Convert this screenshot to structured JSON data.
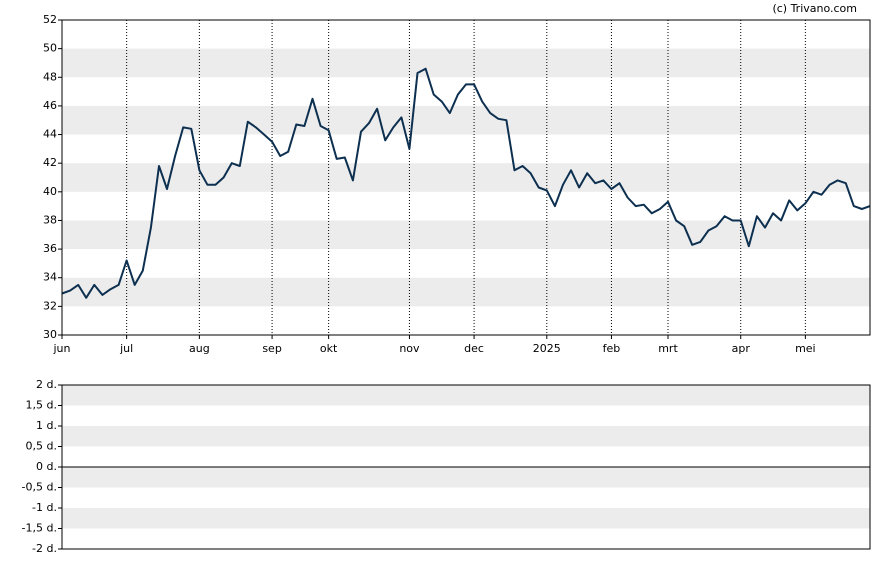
{
  "chart_data": [
    {
      "type": "line",
      "source": "(c) Trivano.com",
      "categories": [
        "jun",
        null,
        null,
        null,
        null,
        null,
        null,
        null,
        "jul",
        null,
        null,
        null,
        null,
        null,
        null,
        null,
        null,
        "aug",
        null,
        null,
        null,
        null,
        null,
        null,
        null,
        null,
        "sep",
        null,
        null,
        null,
        null,
        null,
        null,
        "okt",
        null,
        null,
        null,
        null,
        null,
        null,
        null,
        null,
        null,
        "nov",
        null,
        null,
        null,
        null,
        null,
        null,
        null,
        "dec",
        null,
        null,
        null,
        null,
        null,
        null,
        null,
        null,
        "2025",
        null,
        null,
        null,
        null,
        null,
        null,
        null,
        "feb",
        null,
        null,
        null,
        null,
        null,
        null,
        "mrt",
        null,
        null,
        null,
        null,
        null,
        null,
        null,
        null,
        "apr",
        null,
        null,
        null,
        null,
        null,
        null,
        null,
        "mei",
        null,
        null,
        null,
        null,
        null,
        null,
        null,
        null
      ],
      "series": [
        {
          "color": "#0d3050",
          "values": [
            32.9,
            33.1,
            33.5,
            32.6,
            33.5,
            32.8,
            33.2,
            33.5,
            35.2,
            33.5,
            34.5,
            37.5,
            41.8,
            40.2,
            42.5,
            44.5,
            44.4,
            41.5,
            40.5,
            40.5,
            41.0,
            42.0,
            41.8,
            44.9,
            44.5,
            44.0,
            43.5,
            42.5,
            42.8,
            44.7,
            44.6,
            46.5,
            44.6,
            44.3,
            42.3,
            42.4,
            40.8,
            44.2,
            44.8,
            45.8,
            43.6,
            44.5,
            45.2,
            43.0,
            48.3,
            48.6,
            46.8,
            46.3,
            45.5,
            46.8,
            47.5,
            47.5,
            46.3,
            45.5,
            45.1,
            45.0,
            41.5,
            41.8,
            41.3,
            40.3,
            40.1,
            39.0,
            40.5,
            41.5,
            40.3,
            41.3,
            40.6,
            40.8,
            40.2,
            40.6,
            39.6,
            39.0,
            39.1,
            38.5,
            38.8,
            39.3,
            38.0,
            37.6,
            36.3,
            36.5,
            37.3,
            37.6,
            38.3,
            38.0,
            38.0,
            36.2,
            38.3,
            37.5,
            38.5,
            38.0,
            39.4,
            38.7,
            39.2,
            40.0,
            39.8,
            40.5,
            40.8,
            40.6,
            39.0,
            38.8,
            39.0
          ]
        }
      ],
      "ylim": [
        30,
        52
      ],
      "yticks": [
        30,
        32,
        34,
        36,
        38,
        40,
        42,
        44,
        46,
        48,
        50,
        52
      ],
      "grid": true
    },
    {
      "type": "line",
      "ylim": [
        -2,
        2
      ],
      "yticks": [
        {
          "value": 2,
          "label": "2 d."
        },
        {
          "value": 1.5,
          "label": "1,5 d."
        },
        {
          "value": 1,
          "label": "1 d."
        },
        {
          "value": 0.5,
          "label": "0,5 d."
        },
        {
          "value": 0,
          "label": "0 d."
        },
        {
          "value": -0.5,
          "label": "-0,5 d."
        },
        {
          "value": -1,
          "label": "-1 d."
        },
        {
          "value": -1.5,
          "label": "-1,5 d."
        },
        {
          "value": -2,
          "label": "-2 d."
        }
      ],
      "grid": true
    }
  ]
}
